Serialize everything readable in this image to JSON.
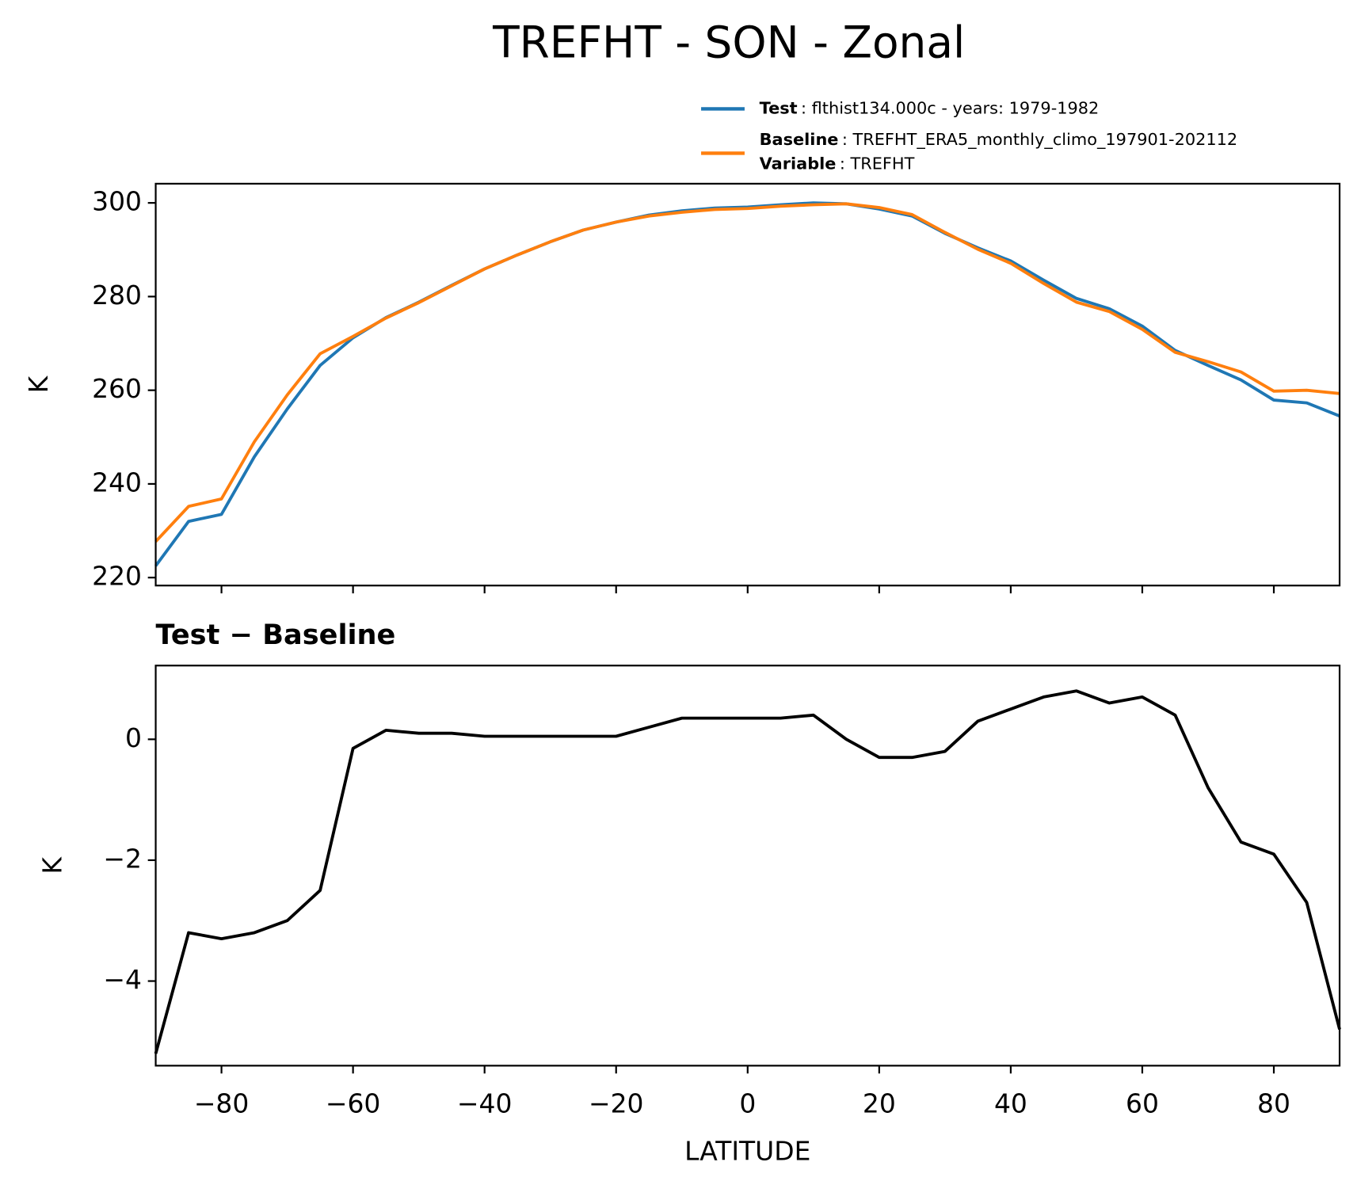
{
  "chart_data": [
    {
      "type": "line",
      "title": "TREFHT - SON - Zonal",
      "ylabel": "K",
      "x": [
        -90,
        -85,
        -80,
        -75,
        -70,
        -65,
        -60,
        -55,
        -50,
        -45,
        -40,
        -35,
        -30,
        -25,
        -20,
        -15,
        -10,
        -5,
        0,
        5,
        10,
        15,
        20,
        25,
        30,
        35,
        40,
        45,
        50,
        55,
        60,
        65,
        70,
        75,
        80,
        85,
        90
      ],
      "series": [
        {
          "name": "Test",
          "description": ": flthist134.000c - years: 1979-1982",
          "color": "#1f77b4",
          "values": [
            222.5,
            232.0,
            233.5,
            245.8,
            256.0,
            265.3,
            271.2,
            275.5,
            278.8,
            282.4,
            285.9,
            288.9,
            291.7,
            294.2,
            295.9,
            297.4,
            298.3,
            298.9,
            299.1,
            299.6,
            300.0,
            299.8,
            298.7,
            297.2,
            293.5,
            290.4,
            287.6,
            283.5,
            279.6,
            277.4,
            273.7,
            268.5,
            265.3,
            262.2,
            257.9,
            257.3,
            254.5
          ]
        },
        {
          "name": "Baseline",
          "description": ": TREFHT_ERA5_monthly_climo_197901-202112",
          "variable_label": "Variable",
          "variable": ": TREFHT",
          "color": "#ff7f0e",
          "values": [
            227.7,
            235.2,
            236.8,
            249.0,
            259.0,
            267.8,
            271.5,
            275.4,
            278.7,
            282.3,
            285.9,
            288.9,
            291.7,
            294.2,
            295.9,
            297.2,
            298.0,
            298.6,
            298.8,
            299.3,
            299.6,
            299.8,
            299.0,
            297.5,
            293.7,
            290.1,
            287.1,
            282.8,
            278.8,
            276.8,
            273.0,
            268.1,
            266.1,
            263.9,
            259.8,
            260.0,
            259.3
          ]
        }
      ],
      "xlim": [
        -90,
        90
      ],
      "xticks": [
        -80,
        -60,
        -40,
        -20,
        0,
        20,
        40,
        60,
        80
      ],
      "ylim": [
        218.3,
        304.1
      ],
      "yticks": [
        220,
        240,
        260,
        280,
        300
      ]
    },
    {
      "type": "line",
      "title": "Test − Baseline",
      "ylabel": "K",
      "xlabel": "LATITUDE",
      "x": [
        -90,
        -85,
        -80,
        -75,
        -70,
        -65,
        -60,
        -55,
        -50,
        -45,
        -40,
        -35,
        -30,
        -25,
        -20,
        -15,
        -10,
        -5,
        0,
        5,
        10,
        15,
        20,
        25,
        30,
        35,
        40,
        45,
        50,
        55,
        60,
        65,
        70,
        75,
        80,
        85,
        90
      ],
      "series": [
        {
          "color": "#000000",
          "values": [
            -5.2,
            -3.2,
            -3.3,
            -3.2,
            -3.0,
            -2.5,
            -0.15,
            0.15,
            0.1,
            0.1,
            0.05,
            0.05,
            0.05,
            0.05,
            0.05,
            0.2,
            0.35,
            0.35,
            0.35,
            0.35,
            0.4,
            0.0,
            -0.3,
            -0.3,
            -0.2,
            0.3,
            0.5,
            0.7,
            0.8,
            0.6,
            0.7,
            0.4,
            -0.8,
            -1.7,
            -1.9,
            -2.7,
            -4.8
          ]
        }
      ],
      "xlim": [
        -90,
        90
      ],
      "xticks": [
        {
          "value": -80,
          "label": "−80"
        },
        {
          "value": -60,
          "label": "−60"
        },
        {
          "value": -40,
          "label": "−40"
        },
        {
          "value": -20,
          "label": "−20"
        },
        0,
        20,
        40,
        60,
        80
      ],
      "ylim": [
        -5.4,
        1.22
      ],
      "yticks": [
        {
          "value": -4,
          "label": "−4"
        },
        {
          "value": -2,
          "label": "−2"
        },
        0
      ]
    }
  ]
}
